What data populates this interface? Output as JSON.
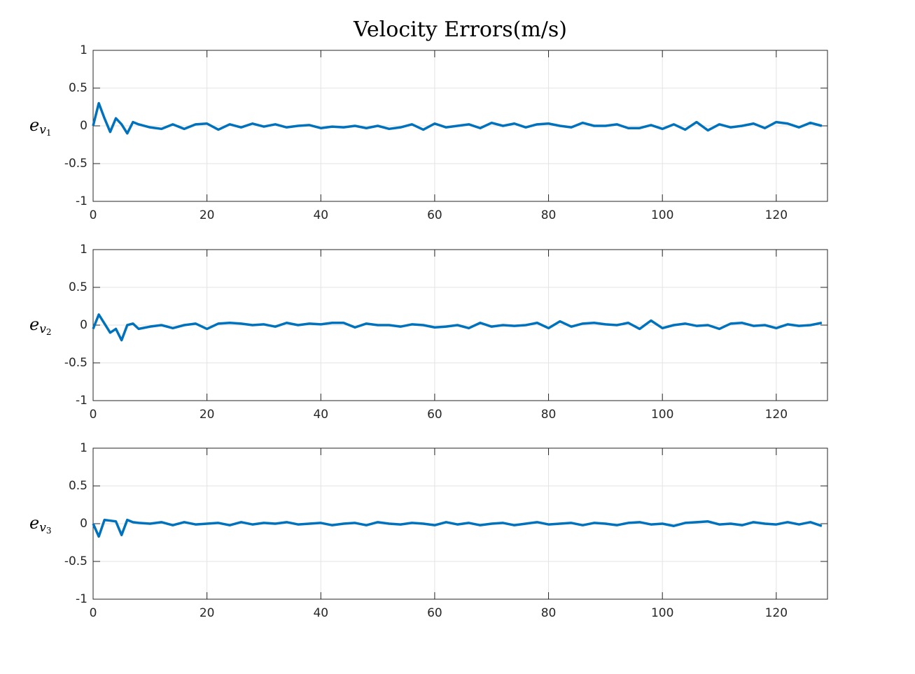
{
  "chart_data": [
    {
      "type": "line",
      "title": "Velocity Errors(m/s)",
      "ylabel": "e",
      "ylabel_subscript": "v",
      "ylabel_subscript2": "1",
      "xlim": [
        0,
        129
      ],
      "xticks": [
        0,
        20,
        40,
        60,
        80,
        100,
        120
      ],
      "ylim": [
        -1,
        1
      ],
      "yticks": [
        -1,
        -0.5,
        0,
        0.5,
        1
      ],
      "grid": true,
      "x": [
        0,
        1,
        2,
        3,
        4,
        5,
        6,
        7,
        8,
        10,
        12,
        14,
        16,
        18,
        20,
        22,
        24,
        26,
        28,
        30,
        32,
        34,
        36,
        38,
        40,
        42,
        44,
        46,
        48,
        50,
        52,
        54,
        56,
        58,
        60,
        62,
        64,
        66,
        68,
        70,
        72,
        74,
        76,
        78,
        80,
        82,
        84,
        86,
        88,
        90,
        92,
        94,
        96,
        98,
        100,
        102,
        104,
        106,
        108,
        110,
        112,
        114,
        116,
        118,
        120,
        122,
        124,
        126,
        128
      ],
      "series": [
        {
          "color": "#0072bd",
          "values": [
            0,
            0.3,
            0.1,
            -0.08,
            0.1,
            0.02,
            -0.1,
            0.05,
            0.02,
            -0.02,
            -0.04,
            0.02,
            -0.04,
            0.02,
            0.03,
            -0.05,
            0.02,
            -0.02,
            0.03,
            -0.01,
            0.02,
            -0.02,
            0.0,
            0.01,
            -0.03,
            -0.01,
            -0.02,
            0.0,
            -0.03,
            0.0,
            -0.04,
            -0.02,
            0.02,
            -0.05,
            0.03,
            -0.02,
            0.0,
            0.02,
            -0.03,
            0.04,
            0.0,
            0.03,
            -0.02,
            0.02,
            0.03,
            0.0,
            -0.02,
            0.04,
            0.0,
            0.0,
            0.02,
            -0.03,
            -0.03,
            0.01,
            -0.04,
            0.02,
            -0.05,
            0.05,
            -0.06,
            0.02,
            -0.02,
            0.0,
            0.03,
            -0.03,
            0.05,
            0.03,
            -0.02,
            0.04,
            0.0
          ]
        }
      ]
    },
    {
      "type": "line",
      "ylabel": "e",
      "ylabel_subscript": "v",
      "ylabel_subscript2": "2",
      "xlim": [
        0,
        129
      ],
      "xticks": [
        0,
        20,
        40,
        60,
        80,
        100,
        120
      ],
      "ylim": [
        -1,
        1
      ],
      "yticks": [
        -1,
        -0.5,
        0,
        0.5,
        1
      ],
      "grid": true,
      "x": [
        0,
        1,
        2,
        3,
        4,
        5,
        6,
        7,
        8,
        10,
        12,
        14,
        16,
        18,
        20,
        22,
        24,
        26,
        28,
        30,
        32,
        34,
        36,
        38,
        40,
        42,
        44,
        46,
        48,
        50,
        52,
        54,
        56,
        58,
        60,
        62,
        64,
        66,
        68,
        70,
        72,
        74,
        76,
        78,
        80,
        82,
        84,
        86,
        88,
        90,
        92,
        94,
        96,
        98,
        100,
        102,
        104,
        106,
        108,
        110,
        112,
        114,
        116,
        118,
        120,
        122,
        124,
        126,
        128
      ],
      "series": [
        {
          "color": "#0072bd",
          "values": [
            -0.05,
            0.14,
            0.02,
            -0.1,
            -0.05,
            -0.2,
            0.0,
            0.02,
            -0.05,
            -0.02,
            0.0,
            -0.04,
            0.0,
            0.02,
            -0.05,
            0.02,
            0.03,
            0.02,
            0.0,
            0.01,
            -0.02,
            0.03,
            0.0,
            0.02,
            0.01,
            0.03,
            0.03,
            -0.03,
            0.02,
            0.0,
            0.0,
            -0.02,
            0.01,
            0.0,
            -0.03,
            -0.02,
            0.0,
            -0.04,
            0.03,
            -0.02,
            0.0,
            -0.01,
            0.0,
            0.03,
            -0.04,
            0.05,
            -0.02,
            0.02,
            0.03,
            0.01,
            0.0,
            0.03,
            -0.05,
            0.06,
            -0.04,
            0.0,
            0.02,
            -0.01,
            0.0,
            -0.05,
            0.02,
            0.03,
            -0.01,
            0.0,
            -0.04,
            0.01,
            -0.01,
            0.0,
            0.03
          ]
        }
      ]
    },
    {
      "type": "line",
      "ylabel": "e",
      "ylabel_subscript": "v",
      "ylabel_subscript2": "3",
      "xlim": [
        0,
        129
      ],
      "xticks": [
        0,
        20,
        40,
        60,
        80,
        100,
        120
      ],
      "ylim": [
        -1,
        1
      ],
      "yticks": [
        -1,
        -0.5,
        0,
        0.5,
        1
      ],
      "grid": true,
      "x": [
        0,
        1,
        2,
        3,
        4,
        5,
        6,
        7,
        8,
        10,
        12,
        14,
        16,
        18,
        20,
        22,
        24,
        26,
        28,
        30,
        32,
        34,
        36,
        38,
        40,
        42,
        44,
        46,
        48,
        50,
        52,
        54,
        56,
        58,
        60,
        62,
        64,
        66,
        68,
        70,
        72,
        74,
        76,
        78,
        80,
        82,
        84,
        86,
        88,
        90,
        92,
        94,
        96,
        98,
        100,
        102,
        104,
        106,
        108,
        110,
        112,
        114,
        116,
        118,
        120,
        122,
        124,
        126,
        128
      ],
      "series": [
        {
          "color": "#0072bd",
          "values": [
            0,
            -0.17,
            0.05,
            0.04,
            0.03,
            -0.15,
            0.05,
            0.02,
            0.01,
            0.0,
            0.02,
            -0.02,
            0.02,
            -0.01,
            0.0,
            0.01,
            -0.02,
            0.02,
            -0.01,
            0.01,
            0.0,
            0.02,
            -0.01,
            0.0,
            0.01,
            -0.02,
            0.0,
            0.01,
            -0.02,
            0.02,
            0.0,
            -0.01,
            0.01,
            0.0,
            -0.02,
            0.02,
            -0.01,
            0.01,
            -0.02,
            0.0,
            0.01,
            -0.02,
            0.0,
            0.02,
            -0.01,
            0.0,
            0.01,
            -0.02,
            0.01,
            0.0,
            -0.02,
            0.01,
            0.02,
            -0.01,
            0.0,
            -0.03,
            0.01,
            0.02,
            0.03,
            -0.01,
            0.0,
            -0.02,
            0.02,
            0.0,
            -0.01,
            0.02,
            -0.01,
            0.02,
            -0.03
          ]
        }
      ]
    }
  ]
}
